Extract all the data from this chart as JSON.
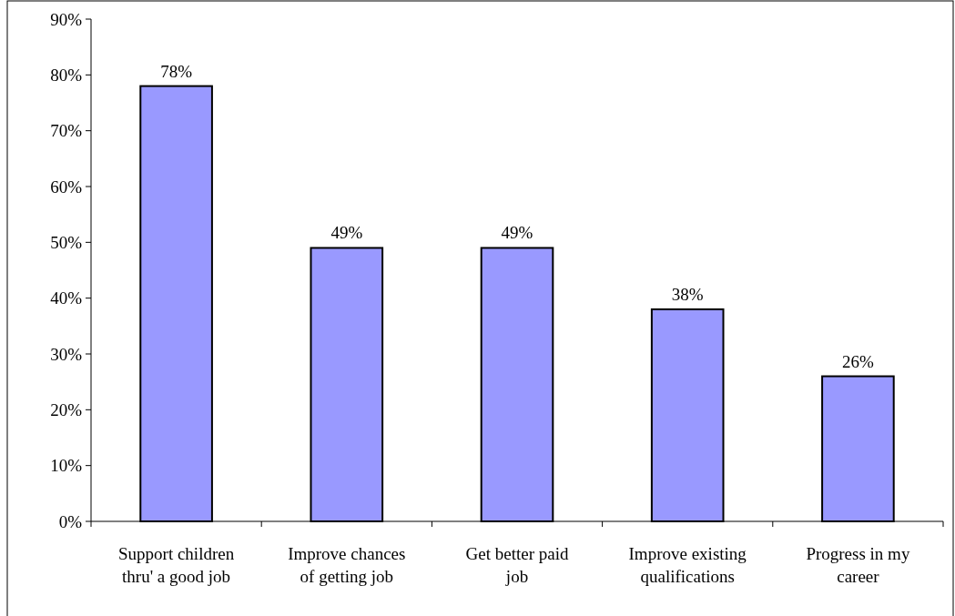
{
  "chart_data": {
    "type": "bar",
    "categories": [
      "Support children\nthru' a good job",
      "Improve chances\nof getting job",
      "Get better paid\njob",
      "Improve existing\nqualifications",
      "Progress in my\ncareer"
    ],
    "values": [
      78,
      49,
      49,
      38,
      26
    ],
    "value_labels": [
      "78%",
      "49%",
      "49%",
      "38%",
      "26%"
    ],
    "color": "#9999ff",
    "ylim": [
      0,
      90
    ],
    "yticks": [
      {
        "value": 0,
        "label": "0%"
      },
      {
        "value": 10,
        "label": "10%"
      },
      {
        "value": 20,
        "label": "20%"
      },
      {
        "value": 30,
        "label": "30%"
      },
      {
        "value": 40,
        "label": "40%"
      },
      {
        "value": 50,
        "label": "50%"
      },
      {
        "value": 60,
        "label": "60%"
      },
      {
        "value": 70,
        "label": "70%"
      },
      {
        "value": 80,
        "label": "80%"
      },
      {
        "value": 90,
        "label": "90%"
      }
    ],
    "grid": false
  }
}
